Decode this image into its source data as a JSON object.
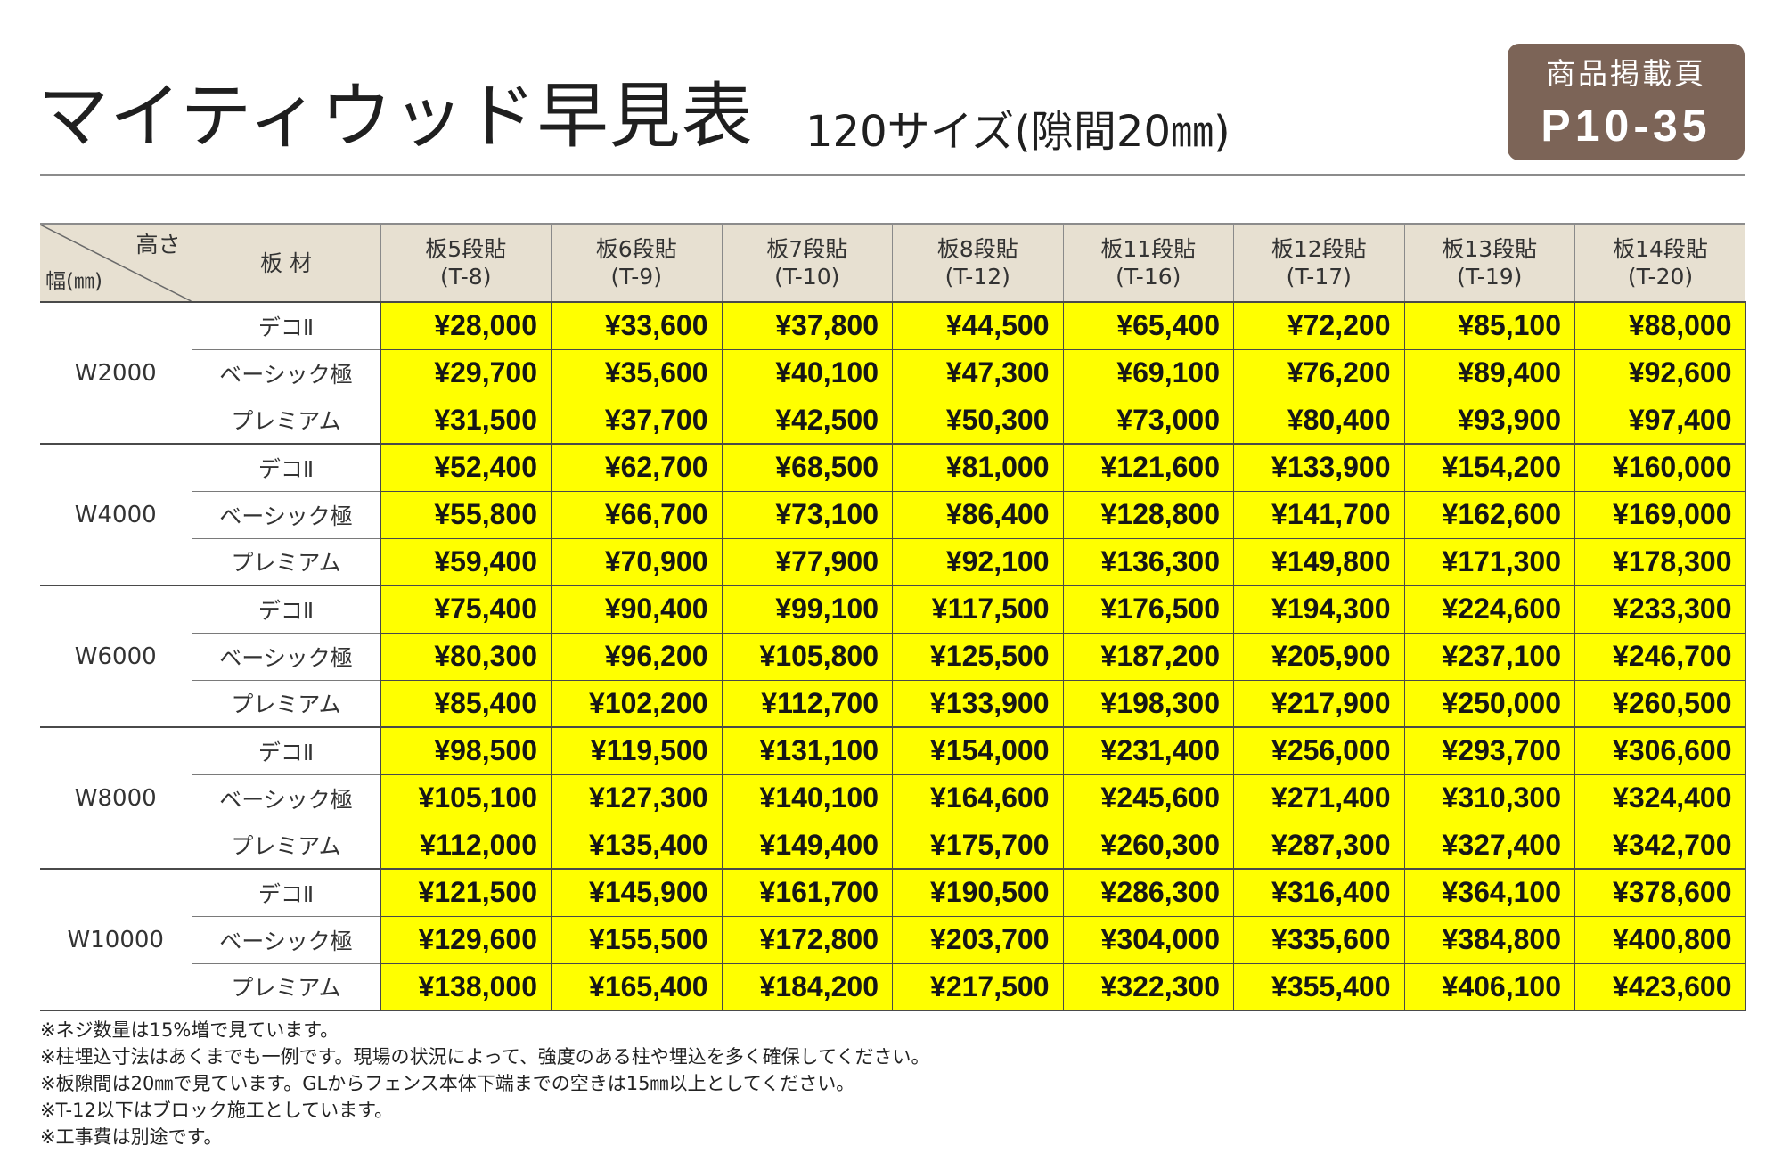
{
  "header": {
    "title": "マイティウッド早見表",
    "subtitle": "120サイズ(隙間20㎜)",
    "badge": {
      "label": "商品掲載頁",
      "pages": "P10-35"
    }
  },
  "table": {
    "corner": {
      "height_label": "高さ",
      "width_label": "幅(㎜)"
    },
    "material_header": "板 材",
    "columns": [
      {
        "name": "板5段貼",
        "code": "(T-8)"
      },
      {
        "name": "板6段貼",
        "code": "(T-9)"
      },
      {
        "name": "板7段貼",
        "code": "(T-10)"
      },
      {
        "name": "板8段貼",
        "code": "(T-12)"
      },
      {
        "name": "板11段貼",
        "code": "(T-16)"
      },
      {
        "name": "板12段貼",
        "code": "(T-17)"
      },
      {
        "name": "板13段貼",
        "code": "(T-19)"
      },
      {
        "name": "板14段貼",
        "code": "(T-20)"
      }
    ],
    "groups": [
      {
        "width": "W2000",
        "rows": [
          {
            "material": "デコⅡ",
            "prices": [
              "¥28,000",
              "¥33,600",
              "¥37,800",
              "¥44,500",
              "¥65,400",
              "¥72,200",
              "¥85,100",
              "¥88,000"
            ]
          },
          {
            "material": "ベーシック極",
            "prices": [
              "¥29,700",
              "¥35,600",
              "¥40,100",
              "¥47,300",
              "¥69,100",
              "¥76,200",
              "¥89,400",
              "¥92,600"
            ]
          },
          {
            "material": "プレミアム",
            "prices": [
              "¥31,500",
              "¥37,700",
              "¥42,500",
              "¥50,300",
              "¥73,000",
              "¥80,400",
              "¥93,900",
              "¥97,400"
            ]
          }
        ]
      },
      {
        "width": "W4000",
        "rows": [
          {
            "material": "デコⅡ",
            "prices": [
              "¥52,400",
              "¥62,700",
              "¥68,500",
              "¥81,000",
              "¥121,600",
              "¥133,900",
              "¥154,200",
              "¥160,000"
            ]
          },
          {
            "material": "ベーシック極",
            "prices": [
              "¥55,800",
              "¥66,700",
              "¥73,100",
              "¥86,400",
              "¥128,800",
              "¥141,700",
              "¥162,600",
              "¥169,000"
            ]
          },
          {
            "material": "プレミアム",
            "prices": [
              "¥59,400",
              "¥70,900",
              "¥77,900",
              "¥92,100",
              "¥136,300",
              "¥149,800",
              "¥171,300",
              "¥178,300"
            ]
          }
        ]
      },
      {
        "width": "W6000",
        "rows": [
          {
            "material": "デコⅡ",
            "prices": [
              "¥75,400",
              "¥90,400",
              "¥99,100",
              "¥117,500",
              "¥176,500",
              "¥194,300",
              "¥224,600",
              "¥233,300"
            ]
          },
          {
            "material": "ベーシック極",
            "prices": [
              "¥80,300",
              "¥96,200",
              "¥105,800",
              "¥125,500",
              "¥187,200",
              "¥205,900",
              "¥237,100",
              "¥246,700"
            ]
          },
          {
            "material": "プレミアム",
            "prices": [
              "¥85,400",
              "¥102,200",
              "¥112,700",
              "¥133,900",
              "¥198,300",
              "¥217,900",
              "¥250,000",
              "¥260,500"
            ]
          }
        ]
      },
      {
        "width": "W8000",
        "rows": [
          {
            "material": "デコⅡ",
            "prices": [
              "¥98,500",
              "¥119,500",
              "¥131,100",
              "¥154,000",
              "¥231,400",
              "¥256,000",
              "¥293,700",
              "¥306,600"
            ]
          },
          {
            "material": "ベーシック極",
            "prices": [
              "¥105,100",
              "¥127,300",
              "¥140,100",
              "¥164,600",
              "¥245,600",
              "¥271,400",
              "¥310,300",
              "¥324,400"
            ]
          },
          {
            "material": "プレミアム",
            "prices": [
              "¥112,000",
              "¥135,400",
              "¥149,400",
              "¥175,700",
              "¥260,300",
              "¥287,300",
              "¥327,400",
              "¥342,700"
            ]
          }
        ]
      },
      {
        "width": "W10000",
        "rows": [
          {
            "material": "デコⅡ",
            "prices": [
              "¥121,500",
              "¥145,900",
              "¥161,700",
              "¥190,500",
              "¥286,300",
              "¥316,400",
              "¥364,100",
              "¥378,600"
            ]
          },
          {
            "material": "ベーシック極",
            "prices": [
              "¥129,600",
              "¥155,500",
              "¥172,800",
              "¥203,700",
              "¥304,000",
              "¥335,600",
              "¥384,800",
              "¥400,800"
            ]
          },
          {
            "material": "プレミアム",
            "prices": [
              "¥138,000",
              "¥165,400",
              "¥184,200",
              "¥217,500",
              "¥322,300",
              "¥355,400",
              "¥406,100",
              "¥423,600"
            ]
          }
        ]
      }
    ]
  },
  "notes": [
    "※ネジ数量は15%増で見ています。",
    "※柱埋込寸法はあくまでも一例です。現場の状況によって、強度のある柱や埋込を多く確保してください。",
    "※板隙間は20㎜で見ています。GLからフェンス本体下端までの空きは15㎜以上としてください。",
    "※T-12以下はブロック施工としています。",
    "※工事費は別途です。"
  ],
  "colors": {
    "badge": "#7c6457",
    "header_bg": "#e7e0d1",
    "price_bg": "#ffff00"
  }
}
